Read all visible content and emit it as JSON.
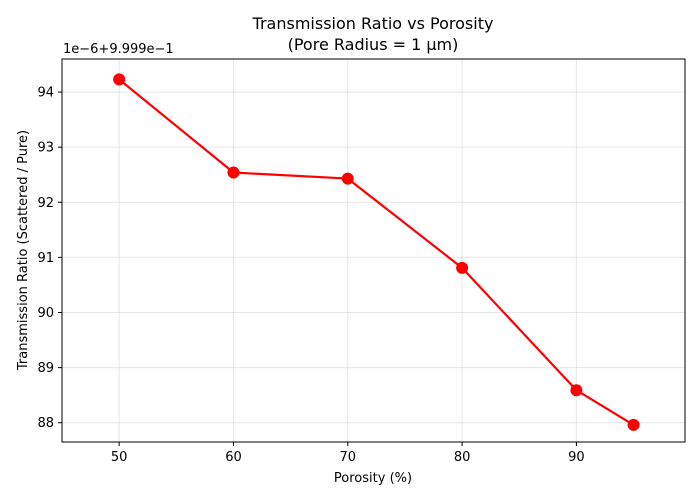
{
  "chart_data": {
    "type": "line",
    "title": "Transmission Ratio vs Porosity",
    "subtitle": "(Pore Radius = 1 μm)",
    "xlabel": "Porosity (%)",
    "ylabel": "Transmission Ratio (Scattered / Pure)",
    "y_offset_label": "1e−6+9.999e−1",
    "x": [
      50,
      60,
      70,
      80,
      90,
      95
    ],
    "series": [
      {
        "values": [
          94.23,
          92.54,
          92.43,
          90.81,
          88.59,
          87.96
        ]
      }
    ],
    "xlim": [
      45,
      99.5
    ],
    "ylim": [
      87.65,
      94.6
    ],
    "x_ticks": [
      50,
      60,
      70,
      80,
      90
    ],
    "y_ticks": [
      88,
      89,
      90,
      91,
      92,
      93,
      94
    ],
    "grid": true,
    "legend": "none",
    "line_color": "#ff0000",
    "marker_color": "#ff0000"
  }
}
